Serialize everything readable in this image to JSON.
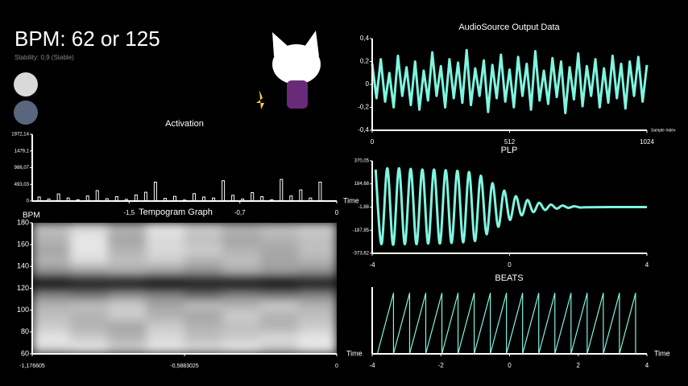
{
  "header": {
    "title": "BPM: 62 or 125",
    "subtitle": "Stability: 0,9 (Stable)"
  },
  "chart_data": [
    {
      "type": "bar",
      "title": "Activation",
      "x_label": "Time",
      "color": "#ffffff",
      "x": [
        -2.15,
        -2.08,
        -2.01,
        -1.94,
        -1.87,
        -1.8,
        -1.73,
        -1.66,
        -1.59,
        -1.52,
        -1.45,
        -1.38,
        -1.31,
        -1.24,
        -1.17,
        -1.1,
        -1.03,
        -0.96,
        -0.89,
        -0.82,
        -0.75,
        -0.68,
        -0.61,
        -0.54,
        -0.47,
        -0.4,
        -0.33,
        -0.26,
        -0.19,
        -0.12
      ],
      "values": [
        120,
        60,
        210,
        90,
        40,
        150,
        310,
        70,
        130,
        50,
        180,
        260,
        560,
        80,
        140,
        30,
        220,
        120,
        90,
        600,
        170,
        60,
        250,
        130,
        40,
        640,
        150,
        330,
        90,
        560
      ],
      "xlim": [
        -2.2,
        0
      ],
      "xticks": [
        {
          "value": -1.5,
          "label": "-1,5"
        },
        {
          "value": -0.7,
          "label": "-0,7"
        },
        0
      ],
      "ylim": [
        0,
        1972.14
      ],
      "yticks": [
        {
          "value": 1972.14,
          "label": "1972,14"
        },
        {
          "value": 1479.1,
          "label": "1479,1"
        },
        {
          "value": 986.07,
          "label": "986,07"
        },
        {
          "value": 493.03,
          "label": "493,03"
        },
        0
      ]
    },
    {
      "type": "heatmap",
      "title": "Tempogram Graph",
      "x_label": "Time",
      "y_label": "BPM",
      "values": [
        [
          0.15,
          0.1,
          0.2,
          0.1,
          0.15,
          0.1,
          0.2,
          0.1
        ],
        [
          0.1,
          0.2,
          0.3,
          0.15,
          0.25,
          0.2,
          0.15,
          0.1
        ],
        [
          0.2,
          0.3,
          0.35,
          0.2,
          0.3,
          0.25,
          0.3,
          0.2
        ],
        [
          0.25,
          0.3,
          0.2,
          0.3,
          0.35,
          0.2,
          0.3,
          0.25
        ],
        [
          0.3,
          0.25,
          0.2,
          0.35,
          0.25,
          0.3,
          0.2,
          0.3
        ],
        [
          0.5,
          0.55,
          0.45,
          0.5,
          0.6,
          0.5,
          0.55,
          0.5
        ],
        [
          0.95,
          0.9,
          0.92,
          0.95,
          0.9,
          0.93,
          0.95,
          0.9
        ],
        [
          0.45,
          0.4,
          0.35,
          0.4,
          0.45,
          0.35,
          0.4,
          0.45
        ],
        [
          0.3,
          0.15,
          0.25,
          0.2,
          0.3,
          0.25,
          0.35,
          0.3
        ],
        [
          0.35,
          0.1,
          0.3,
          0.15,
          0.2,
          0.3,
          0.35,
          0.25
        ],
        [
          0.3,
          0.1,
          0.35,
          0.15,
          0.25,
          0.35,
          0.3,
          0.25
        ],
        [
          0.25,
          0.15,
          0.3,
          0.1,
          0.2,
          0.3,
          0.25,
          0.2
        ]
      ],
      "xlim": [
        -1.176605,
        0
      ],
      "xticks": [
        {
          "value": -1.176605,
          "label": "-1,176605"
        },
        {
          "value": -0.5883025,
          "label": "-0,5883025"
        },
        0
      ],
      "ylim": [
        60,
        180
      ],
      "yticks": [
        60,
        80,
        100,
        120,
        140,
        160,
        180
      ]
    },
    {
      "type": "line",
      "title": "AudioSource Output Data",
      "x_label": "Sample Index",
      "color": "#7ff5e0",
      "x": [
        0,
        16,
        32,
        48,
        64,
        80,
        96,
        112,
        128,
        144,
        160,
        176,
        192,
        208,
        224,
        240,
        256,
        272,
        288,
        304,
        320,
        336,
        352,
        368,
        384,
        400,
        416,
        432,
        448,
        464,
        480,
        496,
        512,
        528,
        544,
        560,
        576,
        592,
        608,
        624,
        640,
        656,
        672,
        688,
        704,
        720,
        736,
        752,
        768,
        784,
        800,
        816,
        832,
        848,
        864,
        880,
        896,
        912,
        928,
        944,
        960,
        976,
        992,
        1008,
        1024
      ],
      "values": [
        0.18,
        -0.12,
        0.22,
        -0.15,
        0.1,
        -0.2,
        0.25,
        -0.1,
        0.15,
        -0.18,
        0.2,
        -0.22,
        0.12,
        -0.14,
        0.28,
        -0.1,
        0.16,
        -0.2,
        0.22,
        -0.12,
        0.19,
        -0.16,
        0.3,
        -0.18,
        0.14,
        -0.1,
        0.21,
        -0.24,
        0.17,
        -0.12,
        0.26,
        -0.15,
        0.13,
        -0.2,
        0.24,
        -0.1,
        0.18,
        -0.22,
        0.29,
        -0.14,
        0.12,
        -0.17,
        0.23,
        -0.11,
        0.2,
        -0.25,
        0.15,
        -0.13,
        0.27,
        -0.19,
        0.16,
        -0.1,
        0.22,
        -0.2,
        0.14,
        -0.16,
        0.25,
        -0.12,
        0.18,
        -0.21,
        0.2,
        -0.1,
        0.24,
        -0.15,
        0.17
      ],
      "xlim": [
        0,
        1024
      ],
      "xticks": [
        0,
        512,
        1024
      ],
      "ylim": [
        -0.4,
        0.4
      ],
      "yticks": [
        {
          "value": 0.4,
          "label": "0,4"
        },
        {
          "value": 0.2,
          "label": "0,2"
        },
        0,
        {
          "value": -0.2,
          "label": "-0,2"
        },
        {
          "value": -0.4,
          "label": "-0,4"
        }
      ]
    },
    {
      "type": "line",
      "title": "PLP",
      "smooth": true,
      "color": "#7ff5e0",
      "x": [
        -3.9,
        -3.73,
        -3.56,
        -3.39,
        -3.22,
        -3.05,
        -2.88,
        -2.71,
        -2.54,
        -2.37,
        -2.2,
        -2.03,
        -1.86,
        -1.69,
        -1.52,
        -1.35,
        -1.18,
        -1.01,
        -0.84,
        -0.67,
        -0.5,
        -0.33,
        -0.16,
        0.01,
        0.18,
        0.35,
        0.52,
        0.69,
        0.86,
        1.03,
        1.2,
        1.37,
        1.54,
        1.71,
        1.88,
        2.05,
        2.22,
        3,
        4
      ],
      "values": [
        300,
        -300,
        310,
        -305,
        310,
        -300,
        305,
        -300,
        300,
        -295,
        300,
        -295,
        295,
        -290,
        290,
        -285,
        280,
        -275,
        250,
        -220,
        190,
        -160,
        130,
        -105,
        85,
        -68,
        55,
        -42,
        32,
        -25,
        18,
        -14,
        10,
        -8,
        5,
        -5,
        -3,
        -1.88,
        -1.88
      ],
      "xlim": [
        -4,
        4
      ],
      "xticks": [
        -4,
        0,
        4
      ],
      "ylim": [
        -373.62,
        370.05
      ],
      "yticks": [
        {
          "value": 370.05,
          "label": "370,05"
        },
        {
          "value": 184.68,
          "label": "184,68"
        },
        {
          "value": -1.88,
          "label": "-1,88"
        },
        {
          "value": -187.85,
          "label": "-187,85"
        },
        {
          "value": -373.62,
          "label": "-373,62"
        }
      ]
    },
    {
      "type": "line",
      "title": "BEATS",
      "x_label": "Time",
      "color": "#7ff5e0",
      "x": [
        -3.85,
        -3.38,
        -3.38,
        -2.91,
        -2.91,
        -2.44,
        -2.44,
        -1.97,
        -1.97,
        -1.5,
        -1.5,
        -1.03,
        -1.03,
        -0.56,
        -0.56,
        -0.09,
        -0.09,
        0.38,
        0.38,
        0.85,
        0.85,
        1.32,
        1.32,
        1.79,
        1.79,
        2.26,
        2.26,
        2.73,
        2.73,
        3.2,
        3.2,
        3.67,
        3.67
      ],
      "values": [
        0,
        1,
        0,
        1,
        0,
        1,
        0,
        1,
        0,
        1,
        0,
        1,
        0,
        1,
        0,
        1,
        0,
        1,
        0,
        1,
        0,
        1,
        0,
        1,
        0,
        1,
        0,
        1,
        0,
        1,
        0,
        1,
        0
      ],
      "xlim": [
        -4,
        4
      ],
      "xticks": [
        -4,
        -2,
        0,
        2,
        4
      ],
      "ylim": [
        0,
        1.1
      ]
    }
  ]
}
